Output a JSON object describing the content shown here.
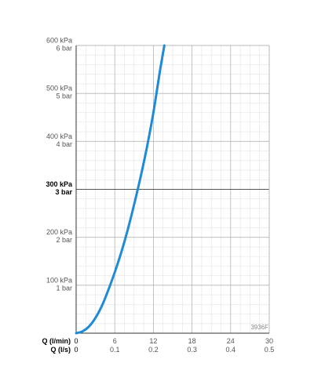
{
  "chart_data": {
    "type": "line",
    "title": "",
    "code": "3936F",
    "x_axis_names": {
      "primary": "Q (l/min)",
      "secondary": "Q (l/s)"
    },
    "x_ticks_primary": [
      "0",
      "6",
      "12",
      "18",
      "24",
      "30"
    ],
    "x_ticks_secondary": [
      "0",
      "0.1",
      "0.2",
      "0.3",
      "0.4",
      "0.5"
    ],
    "xlim": [
      0,
      30
    ],
    "y_ticks": [
      {
        "value": 100,
        "kpa": "100 kPa",
        "bar": "1 bar",
        "bold": false
      },
      {
        "value": 200,
        "kpa": "200 kPa",
        "bar": "2 bar",
        "bold": false
      },
      {
        "value": 300,
        "kpa": "300 kPa",
        "bar": "3 bar",
        "bold": true
      },
      {
        "value": 400,
        "kpa": "400 kPa",
        "bar": "4 bar",
        "bold": false
      },
      {
        "value": 500,
        "kpa": "500 kPa",
        "bar": "5 bar",
        "bold": false
      },
      {
        "value": 600,
        "kpa": "600 kPa",
        "bar": "6 bar",
        "bold": false
      }
    ],
    "ylim": [
      0,
      600
    ],
    "grid": true,
    "series": [
      {
        "color": "#1f8ad6",
        "points": [
          [
            0,
            0
          ],
          [
            1,
            4
          ],
          [
            2,
            14
          ],
          [
            3,
            32
          ],
          [
            4,
            57
          ],
          [
            5,
            90
          ],
          [
            6,
            127
          ],
          [
            7,
            168
          ],
          [
            8,
            215
          ],
          [
            9,
            268
          ],
          [
            10,
            325
          ],
          [
            11,
            388
          ],
          [
            12,
            460
          ],
          [
            13,
            545
          ],
          [
            13.7,
            600
          ]
        ]
      }
    ]
  }
}
